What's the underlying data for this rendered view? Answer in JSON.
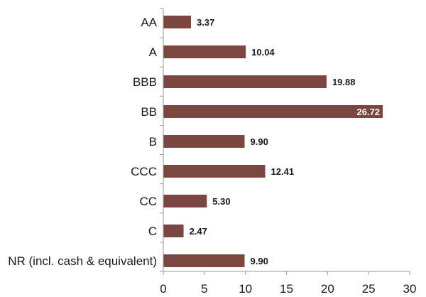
{
  "chart_data": {
    "type": "bar",
    "orientation": "horizontal",
    "categories": [
      "AA",
      "A",
      "BBB",
      "BB",
      "B",
      "CCC",
      "CC",
      "C",
      "NR (incl. cash & equivalent)"
    ],
    "values": [
      3.37,
      10.04,
      19.88,
      26.72,
      9.9,
      12.41,
      5.3,
      2.47,
      9.9
    ],
    "value_labels": [
      "3.37",
      "10.04",
      "19.88",
      "26.72",
      "9.90",
      "12.41",
      "5.30",
      "2.47",
      "9.90"
    ],
    "x_ticks": [
      "0",
      "5",
      "10",
      "15",
      "20",
      "25",
      "30"
    ],
    "xlim": [
      0,
      30
    ],
    "title": "",
    "xlabel": "",
    "ylabel": "",
    "grid": false,
    "bar_color": "#7b4640",
    "axis_color": "#9a9a9a"
  }
}
